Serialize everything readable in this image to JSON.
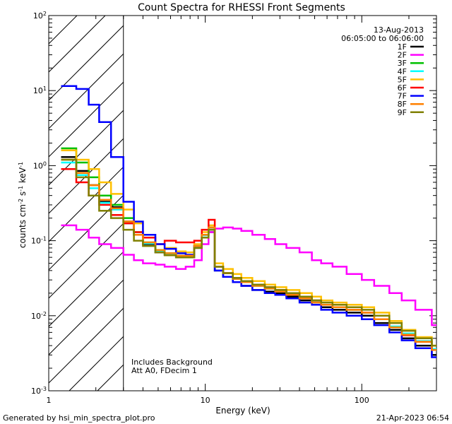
{
  "chart_data": {
    "type": "line",
    "title": "Count Spectra for RHESSI Front Segments",
    "xlabel": "Energy (keV)",
    "ylabel": "counts cm^-2 s^-1 keV^-1",
    "xscale": "log",
    "yscale": "log",
    "xlim": [
      1,
      300
    ],
    "ylim": [
      0.001,
      100
    ],
    "x_tick_labels": [
      "1",
      "10",
      "100"
    ],
    "y_tick_labels": [
      {
        "base": "10",
        "exp": "-3",
        "value": 0.001
      },
      {
        "base": "10",
        "exp": "-2",
        "value": 0.01
      },
      {
        "base": "10",
        "exp": "-1",
        "value": 0.1
      },
      {
        "base": "10",
        "exp": "0",
        "value": 1
      },
      {
        "base": "10",
        "exp": "1",
        "value": 10
      },
      {
        "base": "10",
        "exp": "2",
        "value": 100
      }
    ],
    "date": "13-Aug-2013",
    "time_range": "06:05:00 to 06:06:00",
    "shaded_region_max_kev": 3,
    "annotations": [
      "Includes Background",
      "Att A0, FDecim 1"
    ],
    "footer_left": "Generated by hsi_min_spectra_plot.pro",
    "footer_right": "21-Apr-2023 06:54",
    "energies": [
      1.2,
      1.5,
      1.8,
      2.1,
      2.5,
      3,
      3.5,
      4,
      4.8,
      5.5,
      6.5,
      7.5,
      8.5,
      9.5,
      10.5,
      11.5,
      13,
      15,
      17,
      20,
      24,
      28,
      33,
      40,
      48,
      55,
      65,
      80,
      100,
      120,
      150,
      180,
      220,
      280
    ],
    "series": [
      {
        "name": "1F",
        "color": "#000000",
        "values": [
          1.3,
          0.85,
          0.55,
          0.33,
          0.28,
          0.18,
          0.12,
          0.09,
          0.07,
          0.065,
          0.06,
          0.06,
          0.08,
          0.12,
          0.13,
          0.04,
          0.033,
          0.028,
          0.025,
          0.022,
          0.021,
          0.02,
          0.018,
          0.016,
          0.015,
          0.013,
          0.012,
          0.011,
          0.01,
          0.008,
          0.0065,
          0.005,
          0.004,
          0.003
        ]
      },
      {
        "name": "2F",
        "color": "#ff00ff",
        "values": [
          0.16,
          0.14,
          0.11,
          0.09,
          0.08,
          0.065,
          0.055,
          0.05,
          0.048,
          0.045,
          0.042,
          0.045,
          0.055,
          0.09,
          0.13,
          0.145,
          0.15,
          0.145,
          0.135,
          0.12,
          0.105,
          0.09,
          0.08,
          0.07,
          0.055,
          0.05,
          0.045,
          0.036,
          0.03,
          0.025,
          0.02,
          0.016,
          0.012,
          0.0075
        ]
      },
      {
        "name": "3F",
        "color": "#00c000",
        "values": [
          1.7,
          1.1,
          0.7,
          0.4,
          0.3,
          0.2,
          0.13,
          0.095,
          0.075,
          0.068,
          0.063,
          0.063,
          0.085,
          0.12,
          0.15,
          0.045,
          0.037,
          0.031,
          0.028,
          0.025,
          0.023,
          0.022,
          0.02,
          0.018,
          0.016,
          0.014,
          0.013,
          0.012,
          0.011,
          0.009,
          0.007,
          0.0055,
          0.0045,
          0.0035
        ]
      },
      {
        "name": "4F",
        "color": "#00ffff",
        "values": [
          1.1,
          0.75,
          0.5,
          0.32,
          0.26,
          0.17,
          0.12,
          0.092,
          0.072,
          0.066,
          0.061,
          0.061,
          0.082,
          0.118,
          0.14,
          0.045,
          0.037,
          0.031,
          0.028,
          0.025,
          0.023,
          0.021,
          0.019,
          0.017,
          0.015,
          0.014,
          0.013,
          0.012,
          0.011,
          0.009,
          0.0072,
          0.0058,
          0.0046,
          0.0036
        ]
      },
      {
        "name": "5F",
        "color": "#ffc000",
        "values": [
          1.6,
          1.2,
          0.9,
          0.6,
          0.42,
          0.26,
          0.17,
          0.12,
          0.09,
          0.08,
          0.072,
          0.07,
          0.09,
          0.13,
          0.16,
          0.05,
          0.042,
          0.036,
          0.032,
          0.029,
          0.026,
          0.024,
          0.022,
          0.02,
          0.018,
          0.016,
          0.015,
          0.014,
          0.013,
          0.011,
          0.0085,
          0.0065,
          0.0052,
          0.004
        ]
      },
      {
        "name": "6F",
        "color": "#ff0000",
        "values": [
          0.9,
          0.6,
          0.4,
          0.3,
          0.22,
          0.17,
          0.13,
          0.11,
          0.09,
          0.1,
          0.095,
          0.095,
          0.1,
          0.14,
          0.19,
          0.045,
          0.037,
          0.032,
          0.029,
          0.026,
          0.024,
          0.022,
          0.02,
          0.018,
          0.016,
          0.014,
          0.013,
          0.012,
          0.011,
          0.009,
          0.007,
          0.0055,
          0.0045,
          0.0035
        ]
      },
      {
        "name": "7F",
        "color": "#0000ff",
        "values": [
          11.5,
          10.5,
          6.5,
          3.8,
          1.3,
          0.33,
          0.18,
          0.12,
          0.09,
          0.078,
          0.068,
          0.065,
          0.085,
          0.12,
          0.14,
          0.04,
          0.033,
          0.028,
          0.025,
          0.022,
          0.02,
          0.019,
          0.017,
          0.015,
          0.014,
          0.012,
          0.011,
          0.01,
          0.009,
          0.0075,
          0.006,
          0.0047,
          0.0037,
          0.0028
        ]
      },
      {
        "name": "8F",
        "color": "#ff8000",
        "values": [
          1.2,
          0.8,
          0.55,
          0.35,
          0.27,
          0.18,
          0.12,
          0.095,
          0.075,
          0.068,
          0.063,
          0.063,
          0.085,
          0.12,
          0.15,
          0.045,
          0.037,
          0.031,
          0.028,
          0.025,
          0.023,
          0.021,
          0.019,
          0.017,
          0.015,
          0.014,
          0.013,
          0.012,
          0.011,
          0.009,
          0.007,
          0.0056,
          0.0045,
          0.0035
        ]
      },
      {
        "name": "9F",
        "color": "#808000",
        "values": [
          1.2,
          0.7,
          0.4,
          0.25,
          0.2,
          0.14,
          0.1,
          0.085,
          0.07,
          0.064,
          0.06,
          0.06,
          0.08,
          0.11,
          0.14,
          0.045,
          0.037,
          0.032,
          0.029,
          0.026,
          0.024,
          0.022,
          0.02,
          0.018,
          0.016,
          0.015,
          0.014,
          0.013,
          0.012,
          0.01,
          0.008,
          0.0063,
          0.005,
          0.004
        ]
      }
    ]
  }
}
